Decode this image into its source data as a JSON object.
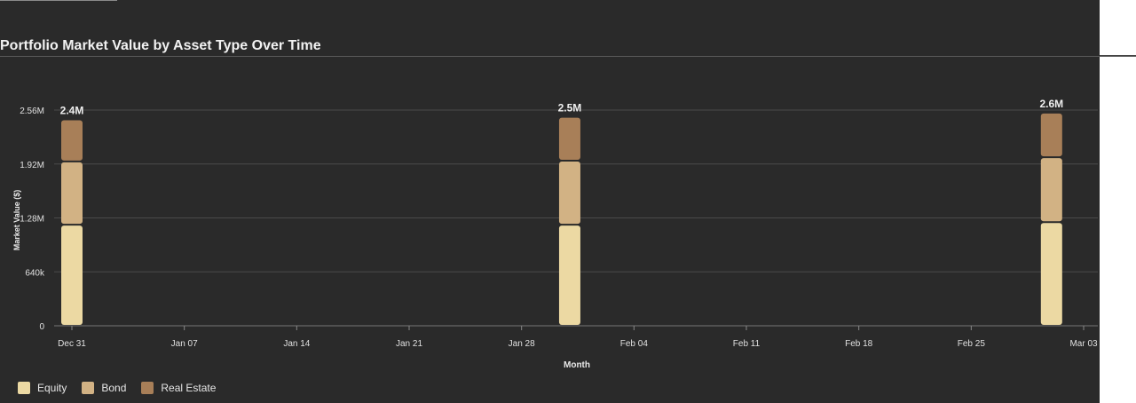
{
  "chart_data": {
    "type": "bar",
    "stacked": true,
    "title": "Portfolio Market Value by Asset Type Over Time",
    "xlabel": "Month",
    "ylabel": "Market Value ($)",
    "x_tick_labels": [
      "Dec 31",
      "Jan 07",
      "Jan 14",
      "Jan 21",
      "Jan 28",
      "Feb 04",
      "Feb 11",
      "Feb 18",
      "Feb 25",
      "Mar 03"
    ],
    "y_tick_labels": [
      "0",
      "640k",
      "1.28M",
      "1.92M",
      "2.56M"
    ],
    "y_ticks": [
      0,
      640000,
      1280000,
      1920000,
      2560000
    ],
    "ylim": [
      0,
      2560000
    ],
    "bar_dates": [
      "2023-12-31",
      "2024-01-31",
      "2024-03-01"
    ],
    "series": [
      {
        "name": "Equity",
        "color": "#ecd9a3",
        "values": [
          1200000,
          1200000,
          1230000
        ]
      },
      {
        "name": "Bond",
        "color": "#d2b284",
        "values": [
          750000,
          760000,
          770000
        ]
      },
      {
        "name": "Real Estate",
        "color": "#a87f58",
        "values": [
          500000,
          520000,
          530000
        ]
      }
    ],
    "total_labels": [
      "2.4M",
      "2.5M",
      "2.6M"
    ],
    "grid": true,
    "legend_position": "bottom-left"
  }
}
